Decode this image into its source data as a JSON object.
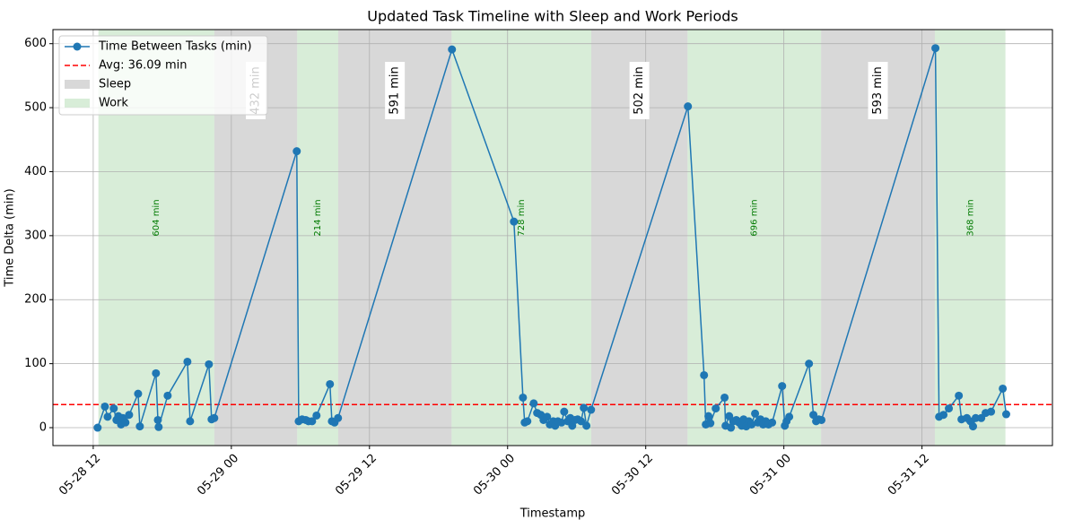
{
  "chart_data": {
    "type": "line",
    "title": "Updated Task Timeline with Sleep and Work Periods",
    "x_label": "Timestamp",
    "y_label": "Time Delta (min)",
    "xlim": [
      "05-28 08:30",
      "05-31 23:20"
    ],
    "xticks": [
      {
        "value": "05-28 12:00",
        "label": "05-28 12"
      },
      {
        "value": "05-29 00:00",
        "label": "05-29 00"
      },
      {
        "value": "05-29 12:00",
        "label": "05-29 12"
      },
      {
        "value": "05-30 00:00",
        "label": "05-30 00"
      },
      {
        "value": "05-30 12:00",
        "label": "05-30 12"
      },
      {
        "value": "05-31 00:00",
        "label": "05-31 00"
      },
      {
        "value": "05-31 12:00",
        "label": "05-31 12"
      }
    ],
    "ylim": [
      -28,
      622
    ],
    "yticks": [
      0,
      100,
      200,
      300,
      400,
      500,
      600
    ],
    "grid": true,
    "legend": "upper left",
    "series": [
      {
        "name": "Time Between Tasks (min)",
        "color": "#1f77b4",
        "x": [
          "05-28 12:23",
          "05-28 13:01",
          "05-28 13:15",
          "05-28 13:47",
          "05-28 14:01",
          "05-28 14:11",
          "05-28 14:25",
          "05-28 14:34",
          "05-28 14:48",
          "05-28 15:07",
          "05-28 15:54",
          "05-28 16:03",
          "05-28 17:27",
          "05-28 17:37",
          "05-28 17:41",
          "05-28 18:28",
          "05-28 20:11",
          "05-28 20:25",
          "05-28 22:03",
          "05-28 22:17",
          "05-28 22:31",
          "05-29 05:41",
          "05-29 05:51",
          "05-29 06:09",
          "05-29 06:28",
          "05-29 06:42",
          "05-29 07:01",
          "05-29 07:24",
          "05-29 08:34",
          "05-29 08:44",
          "05-29 08:58",
          "05-29 09:16",
          "05-29 19:10",
          "05-30 00:33",
          "05-30 01:20",
          "05-30 01:29",
          "05-30 01:43",
          "05-30 02:16",
          "05-30 02:34",
          "05-30 02:53",
          "05-30 03:07",
          "05-30 03:26",
          "05-30 03:40",
          "05-30 03:58",
          "05-30 04:08",
          "05-30 04:22",
          "05-30 04:41",
          "05-30 04:55",
          "05-30 05:13",
          "05-30 05:27",
          "05-30 05:37",
          "05-30 05:51",
          "05-30 06:05",
          "05-30 06:23",
          "05-30 06:37",
          "05-30 06:51",
          "05-30 07:15",
          "05-30 15:40",
          "05-30 17:04",
          "05-30 17:13",
          "05-30 17:27",
          "05-30 17:37",
          "05-30 18:05",
          "05-30 18:51",
          "05-30 18:56",
          "05-30 19:15",
          "05-30 19:24",
          "05-30 19:38",
          "05-30 19:52",
          "05-30 20:06",
          "05-30 20:20",
          "05-30 20:30",
          "05-30 20:44",
          "05-30 20:58",
          "05-30 21:12",
          "05-30 21:30",
          "05-30 21:44",
          "05-30 21:58",
          "05-30 22:12",
          "05-30 22:26",
          "05-30 22:40",
          "05-30 22:59",
          "05-30 23:51",
          "05-31 00:05",
          "05-31 00:14",
          "05-31 00:28",
          "05-31 02:11",
          "05-31 02:34",
          "05-31 02:48",
          "05-31 03:02",
          "05-31 03:16",
          "05-31 13:10",
          "05-31 13:29",
          "05-31 13:52",
          "05-31 14:20",
          "05-31 15:12",
          "05-31 15:26",
          "05-31 15:54",
          "05-31 16:12",
          "05-31 16:26",
          "05-31 16:40",
          "05-31 17:09",
          "05-31 17:32",
          "05-31 18:00",
          "05-31 19:01",
          "05-31 19:19"
        ],
        "values": [
          0,
          33,
          17,
          30,
          12,
          18,
          5,
          15,
          8,
          20,
          53,
          2,
          85,
          12,
          1,
          50,
          103,
          10,
          99,
          13,
          15,
          432,
          10,
          13,
          12,
          10,
          10,
          19,
          68,
          10,
          8,
          15,
          591,
          322,
          47,
          8,
          10,
          38,
          23,
          20,
          12,
          17,
          5,
          10,
          3,
          10,
          8,
          25,
          10,
          15,
          3,
          12,
          13,
          10,
          31,
          3,
          28,
          502,
          82,
          5,
          18,
          7,
          30,
          47,
          3,
          18,
          0,
          10,
          12,
          8,
          3,
          13,
          2,
          10,
          5,
          22,
          8,
          13,
          5,
          10,
          5,
          8,
          65,
          3,
          10,
          17,
          100,
          20,
          10,
          13,
          12,
          593,
          17,
          20,
          30,
          50,
          13,
          15,
          10,
          2,
          15,
          15,
          23,
          25,
          61,
          21
        ]
      }
    ],
    "avg": {
      "label": "Avg: 36.09 min",
      "value": 36.09,
      "color": "#ff0000"
    },
    "sleep": {
      "name": "Sleep",
      "color": "#a9a9a9",
      "spans": [
        {
          "start": "05-28 22:31",
          "end": "05-29 05:43",
          "label": "432 min"
        },
        {
          "start": "05-29 09:17",
          "end": "05-29 19:08",
          "label": "591 min"
        },
        {
          "start": "05-30 07:16",
          "end": "05-30 15:38",
          "label": "502 min"
        },
        {
          "start": "05-31 03:14",
          "end": "05-31 13:07",
          "label": "593 min"
        }
      ]
    },
    "work": {
      "name": "Work",
      "color": "#8fcc8f",
      "spans": [
        {
          "start": "05-28 12:27",
          "end": "05-28 22:31",
          "label": "604 min"
        },
        {
          "start": "05-29 05:43",
          "end": "05-29 09:17",
          "label": "214 min"
        },
        {
          "start": "05-29 19:08",
          "end": "05-30 07:16",
          "label": "728 min"
        },
        {
          "start": "05-30 15:38",
          "end": "05-31 03:14",
          "label": "696 min"
        },
        {
          "start": "05-31 13:07",
          "end": "05-31 19:15",
          "label": "368 min"
        }
      ]
    }
  }
}
